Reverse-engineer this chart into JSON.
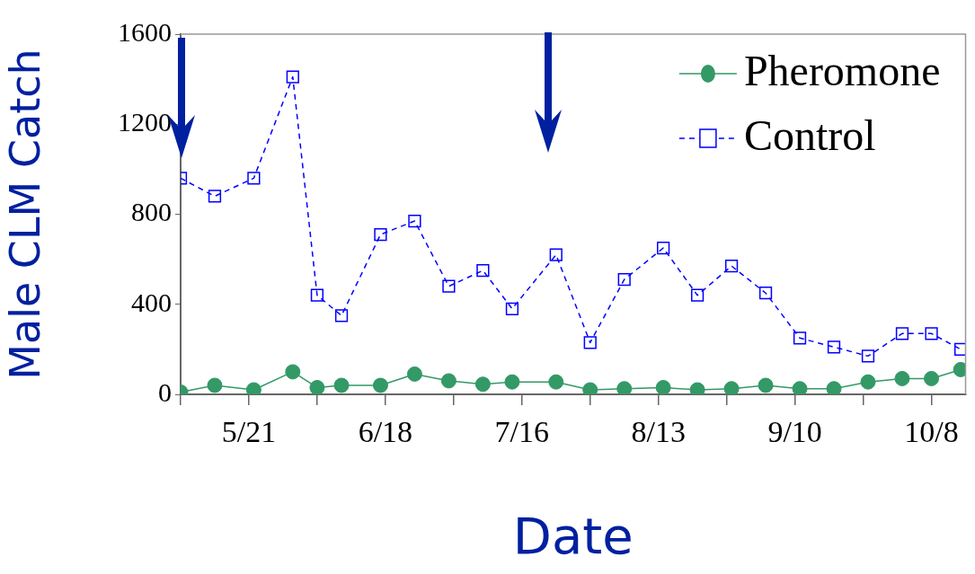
{
  "chart_data": {
    "type": "line",
    "xlabel": "Date",
    "ylabel": "Male CLM Catch",
    "x": [
      "--05-07",
      "--05-14",
      "--05-22",
      "--05-30",
      "--06-04",
      "--06-09",
      "--06-17",
      "--06-24",
      "--07-01",
      "--07-08",
      "--07-14",
      "--07-23",
      "--07-30",
      "--08-06",
      "--08-14",
      "--08-21",
      "--08-28",
      "--09-04",
      "--09-11",
      "--09-18",
      "--09-25",
      "--10-02",
      "--10-08",
      "--10-14"
    ],
    "series": [
      {
        "name": "Pheromone",
        "color": "#339966",
        "marker": "circle",
        "line_style": "solid",
        "values": [
          10,
          40,
          20,
          100,
          30,
          40,
          40,
          90,
          60,
          45,
          55,
          55,
          20,
          25,
          30,
          20,
          25,
          40,
          25,
          25,
          55,
          70,
          70,
          110
        ]
      },
      {
        "name": "Control",
        "color": "#0000ff",
        "marker": "square",
        "line_style": "dashed",
        "values": [
          960,
          880,
          960,
          1410,
          440,
          350,
          710,
          770,
          480,
          550,
          380,
          620,
          230,
          510,
          650,
          440,
          570,
          450,
          250,
          210,
          170,
          270,
          270,
          200
        ]
      }
    ],
    "xlim": [
      "--05-07",
      "--10-15"
    ],
    "xticks": [
      {
        "value": "--05-07",
        "label": null
      },
      {
        "value": "--05-21",
        "label": "5/21"
      },
      {
        "value": "--06-04",
        "label": null
      },
      {
        "value": "--06-18",
        "label": "6/18"
      },
      {
        "value": "--07-02",
        "label": null
      },
      {
        "value": "--07-16",
        "label": "7/16"
      },
      {
        "value": "--07-30",
        "label": null
      },
      {
        "value": "--08-13",
        "label": "8/13"
      },
      {
        "value": "--08-27",
        "label": null
      },
      {
        "value": "--09-10",
        "label": "9/10"
      },
      {
        "value": "--09-24",
        "label": null
      },
      {
        "value": "--10-08",
        "label": "10/8"
      }
    ],
    "ylim": [
      0,
      1600
    ],
    "yticks": [
      0,
      400,
      800,
      1200,
      1600
    ],
    "grid": false,
    "legend": "top right"
  }
}
